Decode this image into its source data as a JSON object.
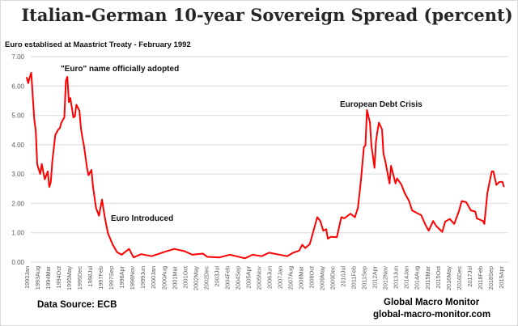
{
  "chart_data": {
    "type": "line",
    "title": "Italian-German 10-year Sovereign Spread (percent)",
    "subtitle": "Euro establised at Maastrict Treaty - February 1992",
    "xlabel": "",
    "ylabel": "",
    "ylim": [
      0,
      7
    ],
    "yticks": [
      "0.00",
      "1.00",
      "2.00",
      "3.00",
      "4.00",
      "5.00",
      "6.00",
      "7.00"
    ],
    "grid": true,
    "legend": "none",
    "line_color": "#ff0000",
    "xticks": [
      "1993Jan",
      "1993Aug",
      "1994Mar",
      "1994Oct",
      "1995May",
      "1995Dec",
      "1996Jul",
      "1997Feb",
      "1997Sep",
      "1998Apr",
      "1998Nov",
      "1999Jun",
      "2000Jan",
      "2000Aug",
      "2001Mar",
      "2001Oct",
      "2002May",
      "2002Dec",
      "2003Jul",
      "2004Feb",
      "2004Sep",
      "2005Apr",
      "2005Nov",
      "2006Jun",
      "2007Jan",
      "2007Aug",
      "2008Mar",
      "2008Oct",
      "2009May",
      "2009Dec",
      "2010Jul",
      "2011Feb",
      "2011Sep",
      "2012Apr",
      "2012Nov",
      "2013Jun",
      "2014Jan",
      "2014Aug",
      "2015Mar",
      "2015Oct",
      "2016May",
      "2016Dec",
      "2017Jul",
      "2018Feb",
      "2018Sep",
      "2019Apr"
    ],
    "annotations": [
      "\"Euro\" name officially adopted",
      "Euro Introduced",
      "European Debt Crisis"
    ],
    "series": [
      {
        "points": [
          [
            "1993-01",
            6.29
          ],
          [
            "1993-02",
            6.1
          ],
          [
            "1993-03",
            6.3
          ],
          [
            "1993-04",
            6.45
          ],
          [
            "1993-06",
            4.88
          ],
          [
            "1993-07",
            4.47
          ],
          [
            "1993-08",
            3.33
          ],
          [
            "1993-10",
            3.0
          ],
          [
            "1993-11",
            3.34
          ],
          [
            "1994-01",
            2.82
          ],
          [
            "1994-03",
            3.09
          ],
          [
            "1994-04",
            2.56
          ],
          [
            "1994-05",
            2.73
          ],
          [
            "1994-06",
            3.42
          ],
          [
            "1994-08",
            4.33
          ],
          [
            "1994-10",
            4.52
          ],
          [
            "1994-11",
            4.56
          ],
          [
            "1994-12",
            4.75
          ],
          [
            "1995-02",
            4.93
          ],
          [
            "1995-03",
            6.17
          ],
          [
            "1995-04",
            6.31
          ],
          [
            "1995-05",
            5.45
          ],
          [
            "1995-06",
            5.59
          ],
          [
            "1995-08",
            4.93
          ],
          [
            "1995-09",
            4.96
          ],
          [
            "1995-10",
            5.36
          ],
          [
            "1995-12",
            5.16
          ],
          [
            "1996-01",
            4.56
          ],
          [
            "1996-02",
            4.24
          ],
          [
            "1996-03",
            3.97
          ],
          [
            "1996-05",
            3.23
          ],
          [
            "1996-06",
            2.96
          ],
          [
            "1996-08",
            3.14
          ],
          [
            "1996-09",
            2.59
          ],
          [
            "1996-11",
            1.85
          ],
          [
            "1997-01",
            1.58
          ],
          [
            "1997-03",
            2.13
          ],
          [
            "1997-05",
            1.49
          ],
          [
            "1997-07",
            0.98
          ],
          [
            "1997-10",
            0.61
          ],
          [
            "1998-01",
            0.34
          ],
          [
            "1998-04",
            0.25
          ],
          [
            "1998-09",
            0.45
          ],
          [
            "1998-12",
            0.16
          ],
          [
            "1999-05",
            0.27
          ],
          [
            "1999-12",
            0.2
          ],
          [
            "2000-08",
            0.34
          ],
          [
            "2001-03",
            0.45
          ],
          [
            "2001-10",
            0.37
          ],
          [
            "2002-03",
            0.25
          ],
          [
            "2002-10",
            0.29
          ],
          [
            "2003-01",
            0.18
          ],
          [
            "2003-09",
            0.16
          ],
          [
            "2004-04",
            0.25
          ],
          [
            "2005-02",
            0.13
          ],
          [
            "2005-07",
            0.25
          ],
          [
            "2006-01",
            0.2
          ],
          [
            "2006-06",
            0.32
          ],
          [
            "2007-06",
            0.2
          ],
          [
            "2007-10",
            0.32
          ],
          [
            "2008-02",
            0.39
          ],
          [
            "2008-04",
            0.59
          ],
          [
            "2008-06",
            0.48
          ],
          [
            "2008-09",
            0.61
          ],
          [
            "2009-02",
            1.53
          ],
          [
            "2009-04",
            1.4
          ],
          [
            "2009-06",
            1.07
          ],
          [
            "2009-08",
            1.12
          ],
          [
            "2009-09",
            0.8
          ],
          [
            "2009-11",
            0.86
          ],
          [
            "2010-03",
            0.85
          ],
          [
            "2010-06",
            1.53
          ],
          [
            "2010-08",
            1.49
          ],
          [
            "2010-12",
            1.65
          ],
          [
            "2011-03",
            1.53
          ],
          [
            "2011-05",
            1.85
          ],
          [
            "2011-07",
            2.77
          ],
          [
            "2011-09",
            3.92
          ],
          [
            "2011-10",
            3.97
          ],
          [
            "2011-11",
            5.18
          ],
          [
            "2012-01",
            4.75
          ],
          [
            "2012-02",
            3.97
          ],
          [
            "2012-04",
            3.21
          ],
          [
            "2012-05",
            4.1
          ],
          [
            "2012-06",
            4.47
          ],
          [
            "2012-07",
            4.75
          ],
          [
            "2012-09",
            4.52
          ],
          [
            "2012-10",
            3.69
          ],
          [
            "2012-11",
            3.49
          ],
          [
            "2013-02",
            2.68
          ],
          [
            "2013-03",
            3.28
          ],
          [
            "2013-06",
            2.68
          ],
          [
            "2013-07",
            2.85
          ],
          [
            "2013-10",
            2.63
          ],
          [
            "2013-12",
            2.36
          ],
          [
            "2014-03",
            2.08
          ],
          [
            "2014-05",
            1.76
          ],
          [
            "2014-09",
            1.65
          ],
          [
            "2014-11",
            1.6
          ],
          [
            "2015-02",
            1.26
          ],
          [
            "2015-04",
            1.07
          ],
          [
            "2015-07",
            1.4
          ],
          [
            "2015-09",
            1.23
          ],
          [
            "2016-01",
            1.03
          ],
          [
            "2016-03",
            1.38
          ],
          [
            "2016-06",
            1.47
          ],
          [
            "2016-09",
            1.3
          ],
          [
            "2016-12",
            1.72
          ],
          [
            "2017-02",
            2.08
          ],
          [
            "2017-05",
            2.04
          ],
          [
            "2017-08",
            1.76
          ],
          [
            "2017-11",
            1.72
          ],
          [
            "2017-12",
            1.49
          ],
          [
            "2018-04",
            1.4
          ],
          [
            "2018-05",
            1.3
          ],
          [
            "2018-07",
            2.36
          ],
          [
            "2018-09",
            2.87
          ],
          [
            "2018-10",
            3.09
          ],
          [
            "2018-11",
            3.09
          ],
          [
            "2019-01",
            2.63
          ],
          [
            "2019-03",
            2.73
          ],
          [
            "2019-05",
            2.73
          ],
          [
            "2019-06",
            2.57
          ]
        ]
      }
    ]
  },
  "footer": {
    "source": "Data Source:  ECB",
    "brand": "Global Macro Monitor",
    "url": "global-macro-monitor.com"
  }
}
